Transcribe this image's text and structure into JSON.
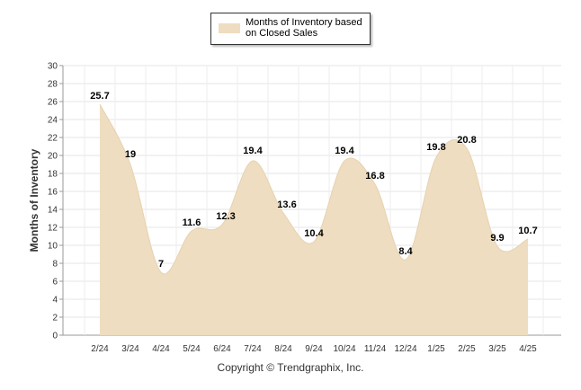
{
  "chart_data": {
    "type": "area",
    "categories": [
      "2/24",
      "3/24",
      "4/24",
      "5/24",
      "6/24",
      "7/24",
      "8/24",
      "9/24",
      "10/24",
      "11/24",
      "12/24",
      "1/25",
      "2/25",
      "3/25",
      "4/25"
    ],
    "series": [
      {
        "name": "Months of Inventory based on Closed Sales",
        "values": [
          25.7,
          19,
          7,
          11.6,
          12.3,
          19.4,
          13.6,
          10.4,
          19.4,
          16.8,
          8.4,
          19.8,
          20.8,
          9.9,
          10.7
        ],
        "color": "#eeddc0"
      }
    ],
    "data_labels": [
      "25.7",
      "19",
      "7",
      "11.6",
      "12.3",
      "19.4",
      "13.6",
      "10.4",
      "19.4",
      "16.8",
      "8.4",
      "19.8",
      "20.8",
      "9.9",
      "10.7"
    ],
    "ylabel": "Months of Inventory",
    "xlabel": "",
    "ylim": [
      0,
      30
    ],
    "yticks": [
      "0",
      "2",
      "4",
      "6",
      "8",
      "10",
      "12",
      "14",
      "16",
      "18",
      "20",
      "22",
      "24",
      "26",
      "28",
      "30"
    ],
    "grid": true,
    "legend": "top-center"
  },
  "legend": {
    "label_line1": "Months of Inventory based",
    "label_line2": "on Closed Sales"
  },
  "footer": {
    "copyright": "Copyright © Trendgraphix, Inc."
  }
}
